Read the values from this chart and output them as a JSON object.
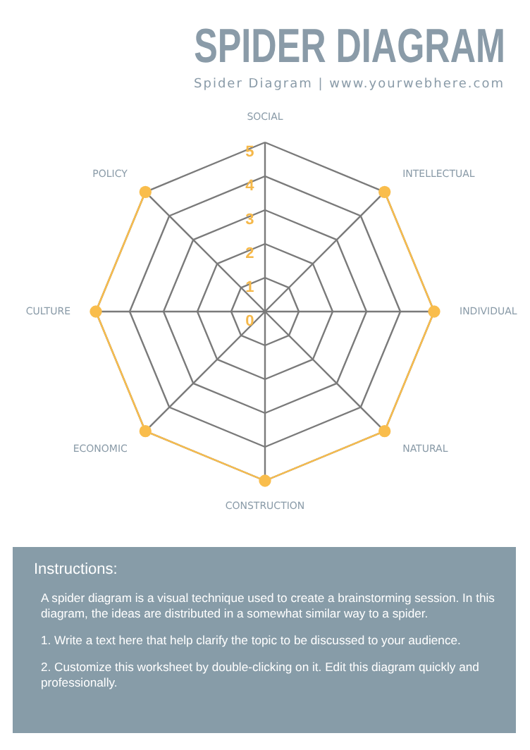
{
  "chart_data": {
    "type": "radar",
    "title": "SPIDER DIAGRAM",
    "subtitle": "Spider Diagram | www.yourwebhere.com",
    "categories": [
      "SOCIAL",
      "INTELLECTUAL",
      "INDIVIDUAL",
      "NATURAL",
      "CONSTRUCTION",
      "ECONOMIC",
      "CULTURE",
      "POLICY"
    ],
    "series": [
      {
        "color": "#f9bd4c",
        "values": [
          null,
          5,
          5,
          5,
          5,
          5,
          5,
          5
        ]
      }
    ],
    "ylim": [
      0,
      5
    ],
    "yticks": [
      0,
      1,
      2,
      3,
      4,
      5
    ],
    "grid": true,
    "marker": "circle",
    "annotations": [
      "Instructions:",
      "A spider diagram is a visual technique used to create a brainstorming session. In this diagram, the ideas are distributed in a somewhat similar way to a spider.",
      "1. Write a text here that help clarify the topic to be discussed to your audience.",
      "2. Customize this worksheet by double-clicking on it. Edit this diagram quickly and professionally."
    ]
  }
}
